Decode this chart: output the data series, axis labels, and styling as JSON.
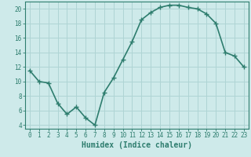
{
  "x": [
    0,
    1,
    2,
    3,
    4,
    5,
    6,
    7,
    8,
    9,
    10,
    11,
    12,
    13,
    14,
    15,
    16,
    17,
    18,
    19,
    20,
    21,
    22,
    23
  ],
  "y": [
    11.5,
    10.0,
    9.8,
    7.0,
    5.5,
    6.5,
    5.0,
    4.0,
    8.5,
    10.5,
    13.0,
    15.5,
    18.5,
    19.5,
    20.2,
    20.5,
    20.5,
    20.2,
    20.0,
    19.3,
    18.0,
    14.0,
    13.5,
    12.0
  ],
  "line_color": "#2e7d6e",
  "marker": "+",
  "marker_size": 4,
  "bg_color": "#ceeaea",
  "grid_color": "#afd4d4",
  "xlabel": "Humidex (Indice chaleur)",
  "xlim": [
    -0.5,
    23.5
  ],
  "ylim": [
    3.5,
    21.0
  ],
  "yticks": [
    4,
    6,
    8,
    10,
    12,
    14,
    16,
    18,
    20
  ],
  "xticks": [
    0,
    1,
    2,
    3,
    4,
    5,
    6,
    7,
    8,
    9,
    10,
    11,
    12,
    13,
    14,
    15,
    16,
    17,
    18,
    19,
    20,
    21,
    22,
    23
  ],
  "tick_fontsize": 5.5,
  "label_fontsize": 7,
  "line_width": 1.2,
  "marker_color": "#2e7d6e"
}
